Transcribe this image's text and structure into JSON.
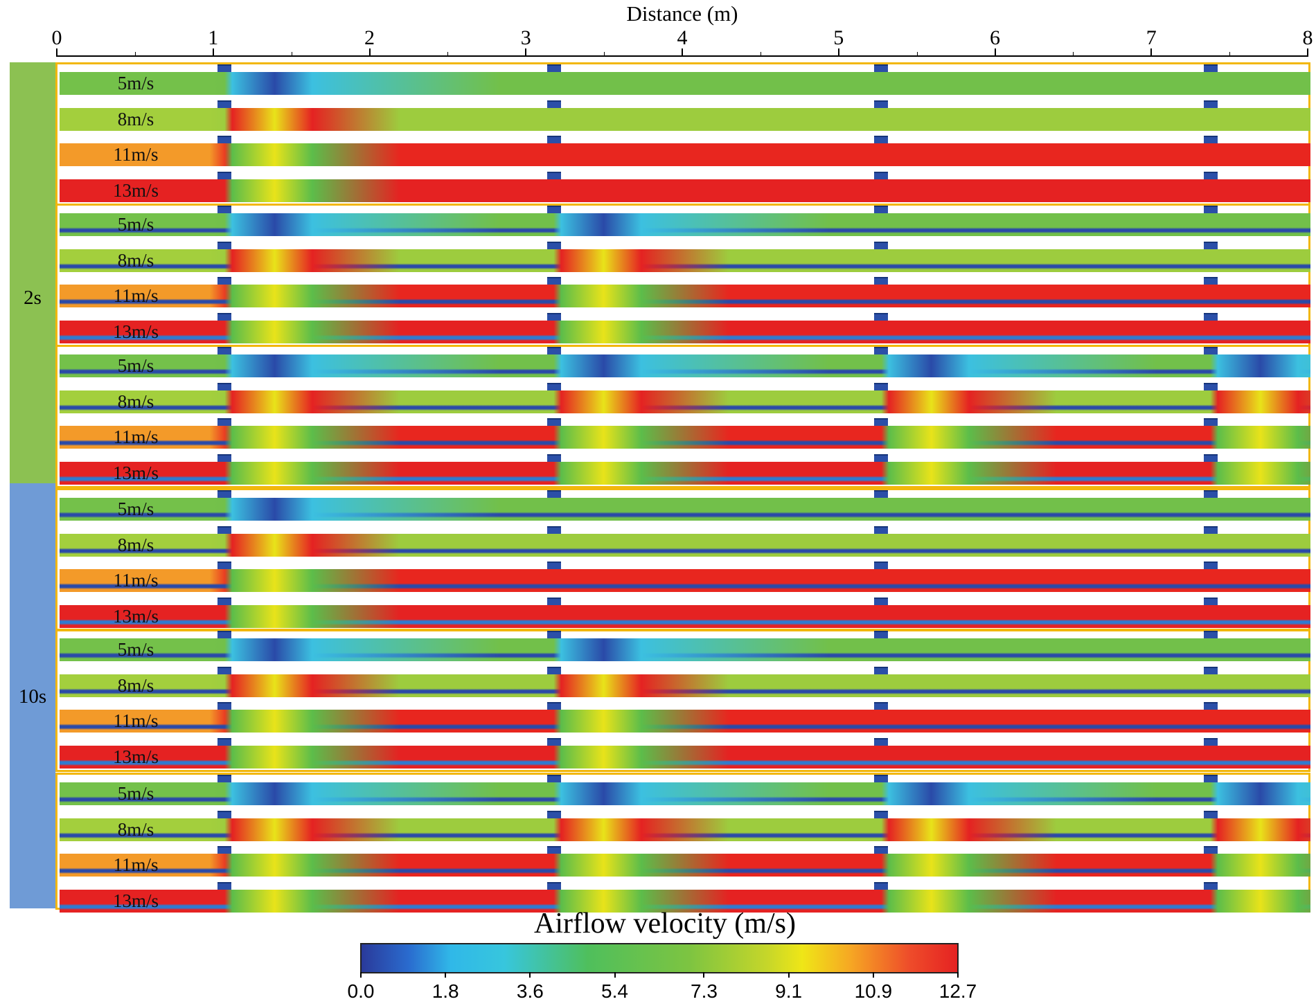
{
  "x_axis": {
    "title": "Distance (m)",
    "ticks": [
      "0",
      "1",
      "2",
      "3",
      "4",
      "5",
      "6",
      "7",
      "8"
    ],
    "range": [
      0,
      8
    ]
  },
  "groups": [
    {
      "label": "2s",
      "color": "#8cc152"
    },
    {
      "label": "10s",
      "color": "#6f9bd6"
    }
  ],
  "speeds": [
    "5m/s",
    "8m/s",
    "11m/s",
    "13m/s"
  ],
  "obstacle_positions_m": [
    1.07,
    3.18,
    5.27,
    7.38
  ],
  "colorbar": {
    "title": "Airflow velocity (m/s)",
    "ticks": [
      "0.0",
      "1.8",
      "3.6",
      "5.4",
      "7.3",
      "9.1",
      "10.9",
      "12.7"
    ],
    "range": [
      0.0,
      12.7
    ],
    "colors": [
      "#2a3a9a",
      "#30b8e8",
      "#4fbf5c",
      "#7dc441",
      "#efe617",
      "#f6a823",
      "#e52222"
    ]
  },
  "band_colors": {
    "5m/s": "#72c04a",
    "8m/s": "#9dcc3e",
    "11m/s": "#e8261f",
    "13m/s": "#e52222"
  },
  "inlet_colors": {
    "5m/s": "#74c14a",
    "8m/s": "#a3cf3d",
    "11m/s": "#f39a29",
    "13m/s": "#e52222"
  }
}
